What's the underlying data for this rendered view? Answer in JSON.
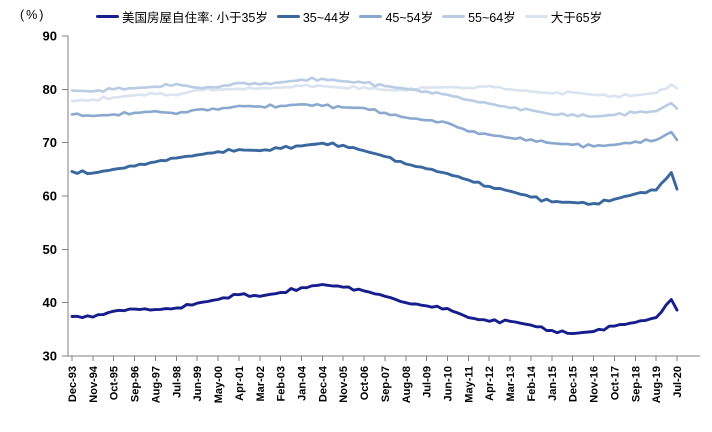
{
  "chart_data": {
    "type": "line",
    "title": "",
    "unit_label": "(%)",
    "xlabel": "",
    "ylabel": "",
    "ylim": [
      30,
      90
    ],
    "y_ticks": [
      30,
      40,
      50,
      60,
      70,
      80,
      90
    ],
    "grid": false,
    "legend_position": "top",
    "x_tick_labels": [
      "Dec-93",
      "Nov-94",
      "Oct-95",
      "Sep-96",
      "Aug-97",
      "Jul-98",
      "Jun-99",
      "May-00",
      "Apr-01",
      "Mar-02",
      "Feb-03",
      "Jan-04",
      "Dec-04",
      "Nov-05",
      "Oct-06",
      "Sep-07",
      "Aug-08",
      "Jul-09",
      "Jun-10",
      "May-11",
      "Apr-12",
      "Mar-13",
      "Feb-14",
      "Jan-15",
      "Dec-15",
      "Nov-16",
      "Oct-17",
      "Sep-18",
      "Aug-19",
      "Jul-20"
    ],
    "x_months": [
      0,
      11,
      22,
      33,
      44,
      55,
      66,
      77,
      88,
      99,
      110,
      121,
      132,
      143,
      154,
      165,
      176,
      187,
      198,
      209,
      220,
      231,
      242,
      253,
      264,
      275,
      286,
      297,
      308,
      316,
      319
    ],
    "series": [
      {
        "label": "美国房屋自住率: 小于35岁",
        "color": "#161D8C",
        "values": [
          37.4,
          37.3,
          38.4,
          38.8,
          38.7,
          39.0,
          39.9,
          40.6,
          41.5,
          41.2,
          41.9,
          42.8,
          43.4,
          42.9,
          42.2,
          41.2,
          40.0,
          39.4,
          38.9,
          37.2,
          36.5,
          36.5,
          35.8,
          34.8,
          34.2,
          34.6,
          35.6,
          36.3,
          37.2,
          40.6,
          38.6
        ]
      },
      {
        "label": "35~44岁",
        "color": "#3A689E",
        "values": [
          64.6,
          64.3,
          65.0,
          65.6,
          66.4,
          67.1,
          67.7,
          68.3,
          68.7,
          68.5,
          68.9,
          69.4,
          69.9,
          69.5,
          68.5,
          67.4,
          66.0,
          65.1,
          64.2,
          63.0,
          61.8,
          60.9,
          59.8,
          58.9,
          58.8,
          58.6,
          59.4,
          60.4,
          61.1,
          64.4,
          61.3
        ]
      },
      {
        "label": "45~54岁",
        "color": "#8AA8CF",
        "values": [
          75.3,
          75.0,
          75.3,
          75.6,
          75.9,
          75.4,
          76.2,
          76.2,
          76.9,
          76.8,
          76.9,
          77.2,
          76.9,
          76.6,
          76.5,
          75.6,
          74.7,
          74.2,
          73.7,
          72.1,
          71.5,
          70.9,
          70.6,
          69.9,
          69.6,
          69.3,
          69.6,
          70.2,
          70.5,
          72.0,
          70.5
        ]
      },
      {
        "label": "55~64岁",
        "color": "#B9CCE3",
        "values": [
          79.8,
          79.6,
          80.0,
          80.2,
          80.5,
          81.0,
          80.3,
          80.4,
          81.2,
          80.9,
          81.3,
          81.8,
          82.0,
          81.5,
          81.2,
          80.6,
          80.1,
          79.6,
          79.0,
          78.0,
          77.3,
          76.5,
          76.1,
          75.3,
          75.3,
          74.9,
          75.2,
          75.6,
          75.9,
          77.4,
          76.4
        ]
      },
      {
        "label": "大于65岁",
        "color": "#DAE3F0",
        "values": [
          77.8,
          78.1,
          78.5,
          78.9,
          79.1,
          78.9,
          79.9,
          80.0,
          80.1,
          80.2,
          80.3,
          80.6,
          80.6,
          80.3,
          80.4,
          79.9,
          79.8,
          80.3,
          80.4,
          80.3,
          80.6,
          80.0,
          79.6,
          79.2,
          79.4,
          79.0,
          78.8,
          78.9,
          79.3,
          80.9,
          80.2
        ]
      }
    ]
  }
}
